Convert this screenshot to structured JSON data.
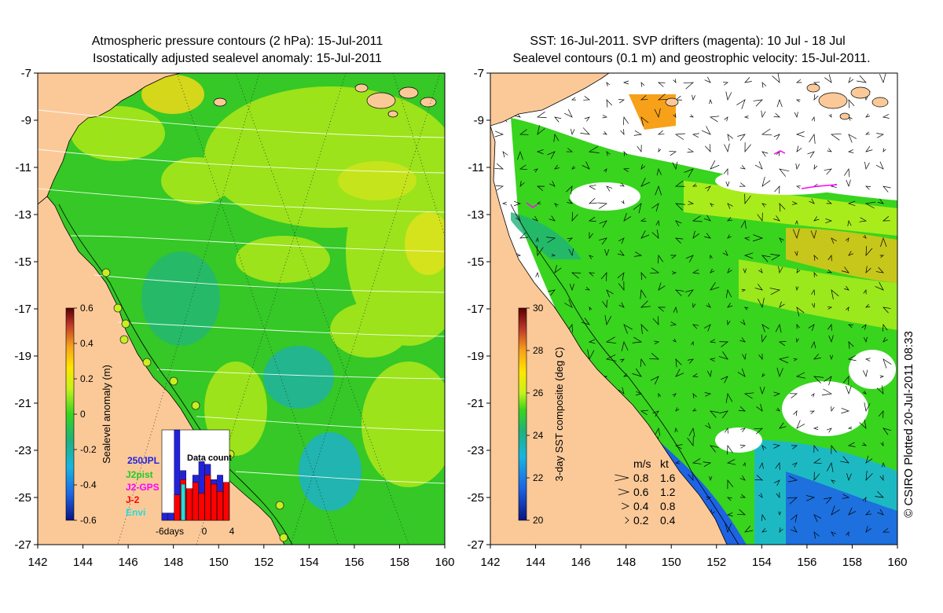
{
  "left_panel": {
    "title_line1": "Atmospheric pressure contours (2 hPa): 15-Jul-2011",
    "title_line2": "Isostatically adjusted sealevel anomaly: 15-Jul-2011",
    "colorbar": {
      "label": "Sealevel anomaly (m)",
      "ticks": [
        "0.6",
        "0.4",
        "0.2",
        "0",
        "-0.2",
        "-0.4",
        "-0.6"
      ],
      "colors": [
        "#5a0000",
        "#c0392b",
        "#f7a11a",
        "#ffe600",
        "#c6f11c",
        "#38d41e",
        "#1fb27a",
        "#19b4e0",
        "#1d63e3",
        "#0a1480"
      ]
    },
    "inset": {
      "title": "Data count",
      "legend": [
        {
          "label": "250",
          "color": "#2222dd"
        },
        {
          "label": "JPL",
          "color": "#2222dd"
        },
        {
          "label": "J2pist",
          "color": "#22cc22"
        },
        {
          "label": "J2-GPS",
          "color": "#ff00ff"
        },
        {
          "label": "J-2",
          "color": "#ff0000"
        },
        {
          "label": "Envi",
          "color": "#22dddd"
        }
      ],
      "xlabels": [
        "-6days",
        "0",
        "4"
      ],
      "bars": [
        {
          "total": 0.08,
          "red": 0.0,
          "cyan": 0.0
        },
        {
          "total": 0.08,
          "red": 0.0,
          "cyan": 0.0
        },
        {
          "total": 1.0,
          "red": 0.28,
          "cyan": 0.0
        },
        {
          "total": 0.55,
          "red": 0.45,
          "cyan": 0.4
        },
        {
          "total": 0.35,
          "red": 0.35,
          "cyan": 0.0
        },
        {
          "total": 0.5,
          "red": 0.42,
          "cyan": 0.0
        },
        {
          "total": 0.65,
          "red": 0.3,
          "cyan": 0.0
        },
        {
          "total": 0.62,
          "red": 0.5,
          "cyan": 0.0
        },
        {
          "total": 0.45,
          "red": 0.4,
          "cyan": 0.0
        },
        {
          "total": 0.5,
          "red": 0.32,
          "cyan": 0.0
        },
        {
          "total": 0.42,
          "red": 0.42,
          "cyan": 0.0
        }
      ]
    }
  },
  "right_panel": {
    "title_line1": "SST: 16-Jul-2011. SVP drifters (magenta): 10 Jul - 18 Jul",
    "title_line2": "Sealevel contours (0.1 m) and geostrophic velocity: 15-Jul-2011.",
    "colorbar": {
      "label": "3-day SST composite (deg C)",
      "ticks": [
        "30",
        "28",
        "26",
        "24",
        "22",
        "20"
      ],
      "colors": [
        "#5a0000",
        "#c0392b",
        "#f7a11a",
        "#ffe600",
        "#c6f11c",
        "#38d41e",
        "#1fb27a",
        "#19b4e0",
        "#1d63e3",
        "#0a1480"
      ]
    },
    "velocity_key": {
      "header_ms": "m/s",
      "header_kt": "kt",
      "rows": [
        {
          "ms": "0.8",
          "kt": "1.6",
          "len": 0.8
        },
        {
          "ms": "0.6",
          "kt": "1.2",
          "len": 0.6
        },
        {
          "ms": "0.4",
          "kt": "0.8",
          "len": 0.4
        },
        {
          "ms": "0.2",
          "kt": "0.4",
          "len": 0.2
        }
      ]
    }
  },
  "axes": {
    "x_ticks": [
      "142",
      "144",
      "146",
      "148",
      "150",
      "152",
      "154",
      "156",
      "158",
      "160"
    ],
    "y_ticks": [
      "-7",
      "-9",
      "-11",
      "-13",
      "-15",
      "-17",
      "-19",
      "-21",
      "-23",
      "-25",
      "-27"
    ]
  },
  "credit": "© CSIRO Plotted 20-Jul-2011 08:33",
  "colors": {
    "land": "#fbc998",
    "sea_green": "#35c826",
    "sea_lime": "#a8e61a",
    "sea_cyan": "#1fb2a0",
    "magenta": "#ff00ff"
  }
}
